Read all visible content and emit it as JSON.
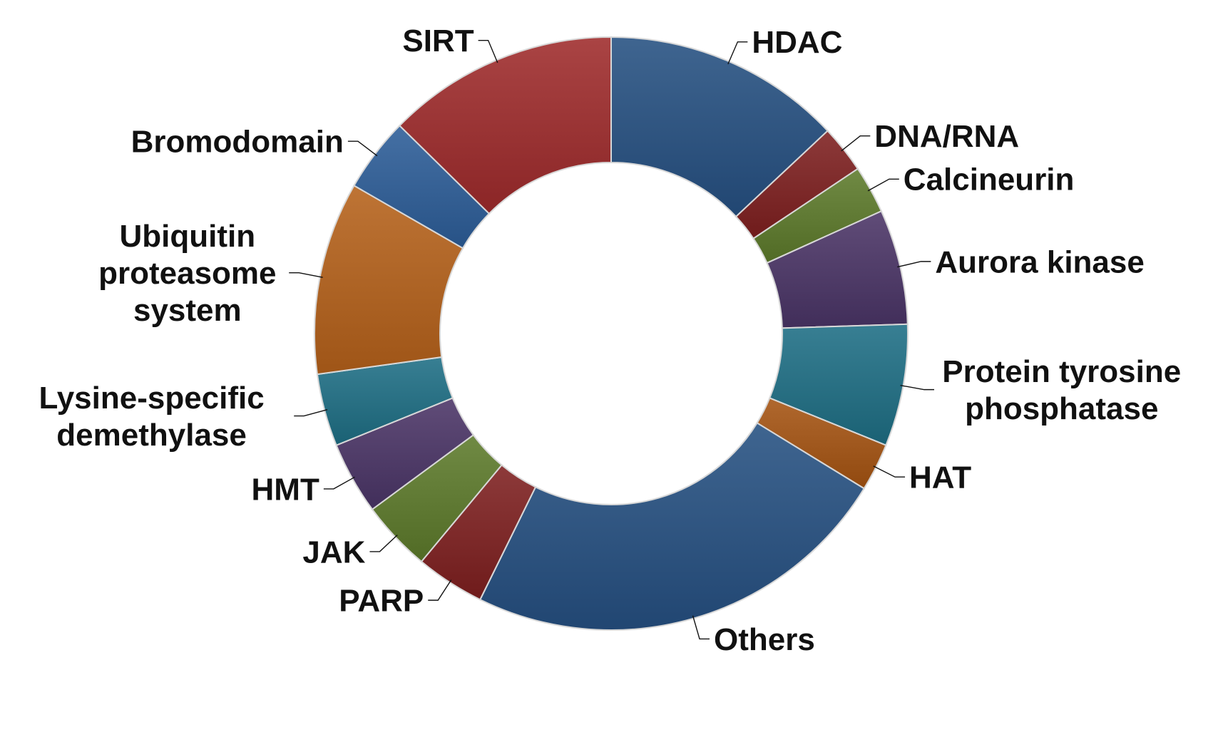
{
  "chart_data": {
    "type": "pie",
    "variant": "donut",
    "start": "top",
    "direction": "clockwise",
    "legend": "none",
    "categories": [
      "HDAC",
      "DNA/RNA",
      "Calcineurin",
      "Aurora kinase",
      "Protein tyrosine phosphatase",
      "HAT",
      "Others",
      "PARP",
      "JAK",
      "HMT",
      "Lysine-specific demethylase",
      "Ubiquitin proteasome system",
      "Bromodomain",
      "SIRT"
    ],
    "values": [
      13.5,
      2.7,
      2.7,
      6.5,
      6.9,
      2.7,
      24.4,
      3.9,
      4.0,
      4.1,
      4.1,
      10.9,
      4.2,
      13.1
    ],
    "colors": [
      "#255081",
      "#7e1f1f",
      "#5c7a2a",
      "#4a3466",
      "#1d6e84",
      "#a55311",
      "#255081",
      "#7e1f1f",
      "#5c7a2a",
      "#4a3466",
      "#1d6e84",
      "#b5611a",
      "#2c5d98",
      "#9e2a2b"
    ],
    "labels": [
      [
        "HDAC"
      ],
      [
        "DNA/RNA"
      ],
      [
        "Calcineurin"
      ],
      [
        "Aurora kinase"
      ],
      [
        "Protein tyrosine",
        "phosphatase"
      ],
      [
        "HAT"
      ],
      [
        "Others"
      ],
      [
        "PARP"
      ],
      [
        "JAK"
      ],
      [
        "HMT"
      ],
      [
        "Lysine-specific",
        "demethylase"
      ],
      [
        "Ubiquitin",
        "proteasome",
        "system"
      ],
      [
        "Bromodomain"
      ],
      [
        "SIRT"
      ]
    ]
  }
}
